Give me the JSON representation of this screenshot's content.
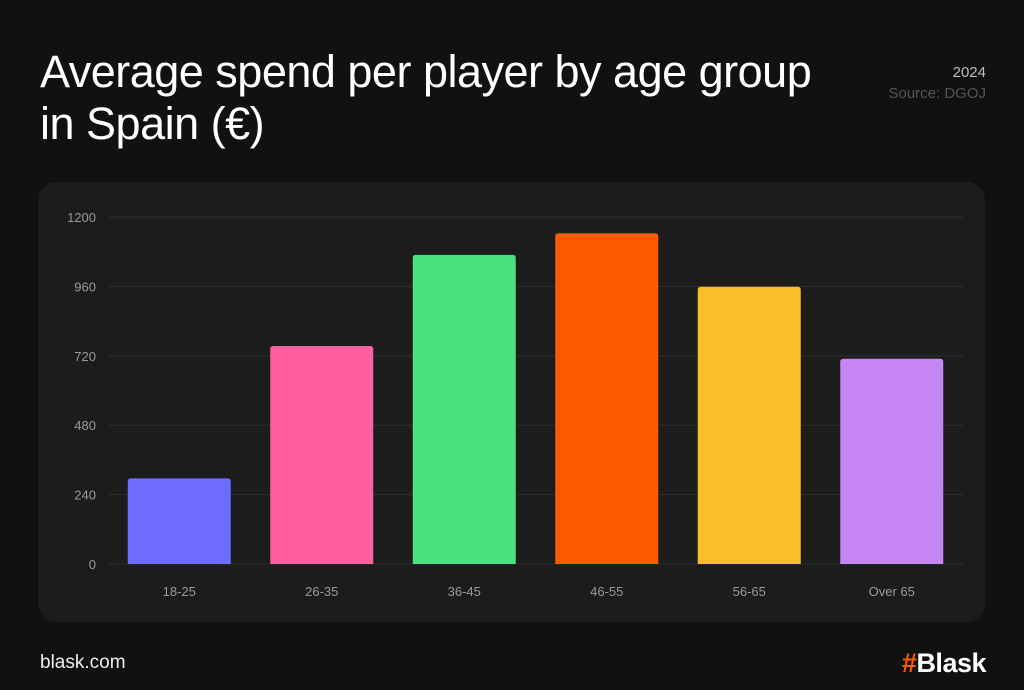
{
  "header": {
    "title": "Average spend per player by age group in Spain (€)",
    "year": "2024",
    "source": "Source: DGOJ"
  },
  "footer": {
    "site": "blask.com",
    "logo_text": "Blask",
    "logo_mark": "#"
  },
  "chart_data": {
    "type": "bar",
    "title": "Average spend per player by age group in Spain (€)",
    "xlabel": "",
    "ylabel": "",
    "categories": [
      "18-25",
      "26-35",
      "36-45",
      "46-55",
      "56-65",
      "Over 65"
    ],
    "values": [
      296,
      754,
      1069,
      1144,
      959,
      710
    ],
    "colors": [
      "#6e6cff",
      "#ff5fa0",
      "#4be080",
      "#ff5a00",
      "#fbbd28",
      "#c585f2"
    ],
    "yticks": [
      0,
      240,
      480,
      720,
      960,
      1200
    ],
    "ylim": [
      0,
      1200
    ],
    "grid": true,
    "legend": "none"
  }
}
